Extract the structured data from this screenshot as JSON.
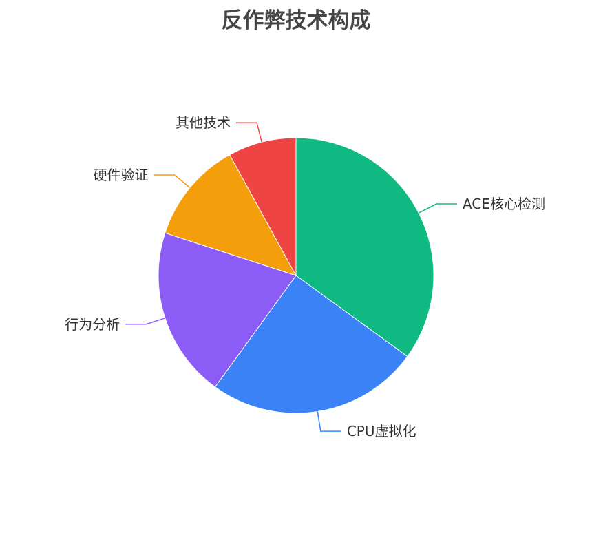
{
  "chart_data": {
    "type": "pie",
    "title": "反作弊技术构成",
    "categories": [
      "ACE核心检测",
      "CPU虚拟化",
      "行为分析",
      "硬件验证",
      "其他技术"
    ],
    "values": [
      35,
      25,
      20,
      12,
      8
    ],
    "colors": [
      "#10b981",
      "#3b82f6",
      "#8b5cf6",
      "#f59e0b",
      "#ef4444"
    ],
    "start_angle": "top",
    "direction": "clockwise",
    "legend": "none",
    "labels": "outside with leader lines"
  }
}
